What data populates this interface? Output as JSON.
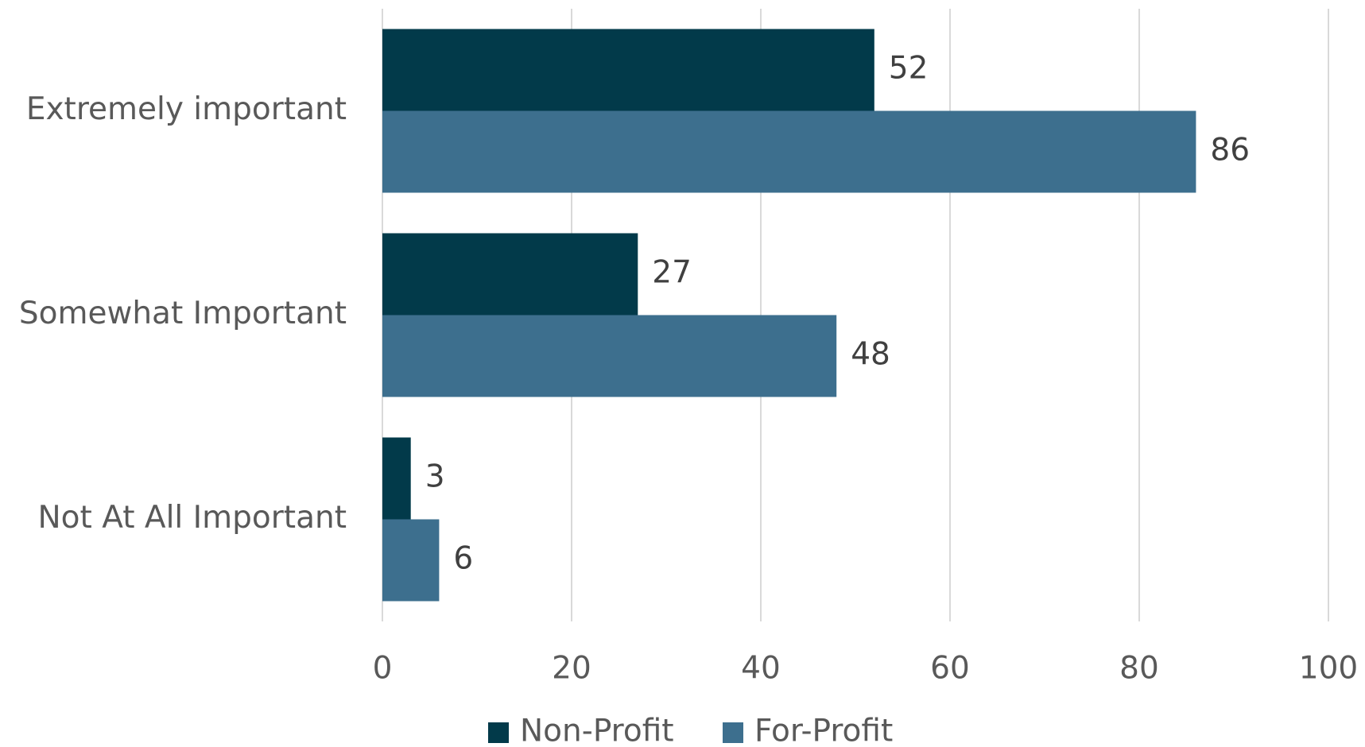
{
  "chart_data": {
    "type": "hbar",
    "categories": [
      "Extremely important",
      "Somewhat Important",
      "Not At All Important"
    ],
    "series": [
      {
        "name": "Non-Profit",
        "color": "#023a4a",
        "values": [
          52,
          27,
          3
        ]
      },
      {
        "name": "For-Profit",
        "color": "#3d6f8e",
        "values": [
          86,
          48,
          6
        ]
      }
    ],
    "xlim": [
      0,
      100
    ],
    "xticks": [
      0,
      20,
      40,
      60,
      80,
      100
    ],
    "grid": true,
    "legend": "bottom"
  }
}
